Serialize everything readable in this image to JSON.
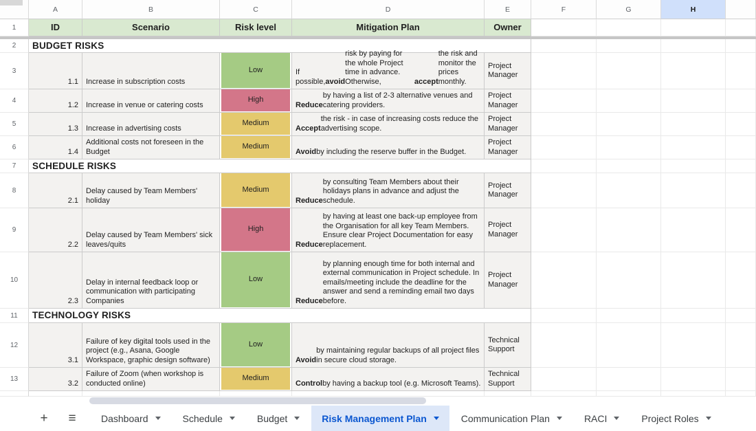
{
  "colors": {
    "header_green": "#d9e9d0",
    "cell_bg": "#f3f2f0",
    "risk_low": "#a5cb84",
    "risk_high": "#d37689",
    "risk_medium": "#e4c96d",
    "selected_column": "#d0e0fb",
    "active_tab_bg": "#dde7f8",
    "active_tab_text": "#0b57d0"
  },
  "icons": {
    "add_sheet": "+",
    "all_sheets": "≡"
  },
  "grid": {
    "col_letters": [
      "A",
      "B",
      "C",
      "D",
      "E",
      "F",
      "G",
      "H"
    ],
    "selected_col": "H",
    "header_row": {
      "num": "1",
      "id": "ID",
      "scenario": "Scenario",
      "risk": "Risk level",
      "mitigation": "Mitigation Plan",
      "owner": "Owner"
    },
    "rows": [
      {
        "num": "2",
        "type": "section",
        "label": "BUDGET RISKS"
      },
      {
        "num": "3",
        "type": "data",
        "id": "1.1",
        "scenario": "Increase in subscription costs",
        "risk": "Low",
        "level": "low",
        "mitigation": "If possible, **avoid** risk by paying for the whole Project time in advance. Otherwise, **accept** the risk and monitor the prices monthly.",
        "owner": "Project Manager"
      },
      {
        "num": "4",
        "type": "data",
        "id": "1.2",
        "scenario": "Increase in venue or catering costs",
        "risk": "High",
        "level": "high",
        "mitigation": "**Reduce** by having a list of 2-3 alternative venues and catering providers.",
        "owner": "Project Manager"
      },
      {
        "num": "5",
        "type": "data",
        "id": "1.3",
        "scenario": "Increase in advertising costs",
        "risk": "Medium",
        "level": "medium",
        "mitigation": "**Accept** the risk - in case of increasing costs reduce the advertising scope.",
        "owner": "Project Manager"
      },
      {
        "num": "6",
        "type": "data",
        "id": "1.4",
        "scenario": "Additional costs not foreseen in the Budget",
        "risk": "Medium",
        "level": "medium",
        "mitigation": "**Avoid** by including the reserve buffer in the Budget.",
        "owner": "Project Manager"
      },
      {
        "num": "7",
        "type": "section",
        "label": "SCHEDULE RISKS"
      },
      {
        "num": "8",
        "type": "data",
        "id": "2.1",
        "scenario": "Delay caused by Team Members' holiday",
        "risk": "Medium",
        "level": "medium",
        "mitigation": "**Reduce** by consulting Team Members about their holidays plans in advance and adjust the schedule.",
        "owner": "Project Manager"
      },
      {
        "num": "9",
        "type": "data",
        "id": "2.2",
        "scenario": "Delay caused by Team Members' sick leaves/quits",
        "risk": "High",
        "level": "high",
        "mitigation": "**Reduce** by having at least one back-up employee from the Organisation for all key Team Members. Ensure clear Project Documentation for easy replacement.",
        "owner": "Project Manager"
      },
      {
        "num": "10",
        "type": "data",
        "id": "2.3",
        "scenario": "Delay in internal feedback loop or communication with participating Companies",
        "risk": "Low",
        "level": "low",
        "mitigation": "**Reduce** by planning enough time for both internal and external communication in Project schedule. In emails/meeting include the deadline for the answer and send a reminding email two days before.",
        "owner": "Project Manager"
      },
      {
        "num": "11",
        "type": "section",
        "label": "TECHNOLOGY RISKS"
      },
      {
        "num": "12",
        "type": "data",
        "id": "3.1",
        "scenario": "Failure of key digital tools used in the project (e.g., Asana, Google Workspace, graphic design software)",
        "risk": "Low",
        "level": "low",
        "mitigation": "**Avoid** by maintaining regular backups of all project files in secure cloud storage.",
        "owner": "Technical Support"
      },
      {
        "num": "13",
        "type": "data",
        "id": "3.2",
        "scenario": "Failure of Zoom (when workshop is conducted online)",
        "risk": "Medium",
        "level": "medium",
        "mitigation": "**Control** by having a backup tool (e.g. Microsoft Teams).",
        "owner": "Technical Support"
      }
    ]
  },
  "tabbar": {
    "tabs": [
      {
        "label": "Dashboard",
        "active": false
      },
      {
        "label": "Schedule",
        "active": false
      },
      {
        "label": "Budget",
        "active": false
      },
      {
        "label": "Risk Management Plan",
        "active": true
      },
      {
        "label": "Communication Plan",
        "active": false
      },
      {
        "label": "RACI",
        "active": false
      },
      {
        "label": "Project Roles",
        "active": false
      }
    ]
  }
}
